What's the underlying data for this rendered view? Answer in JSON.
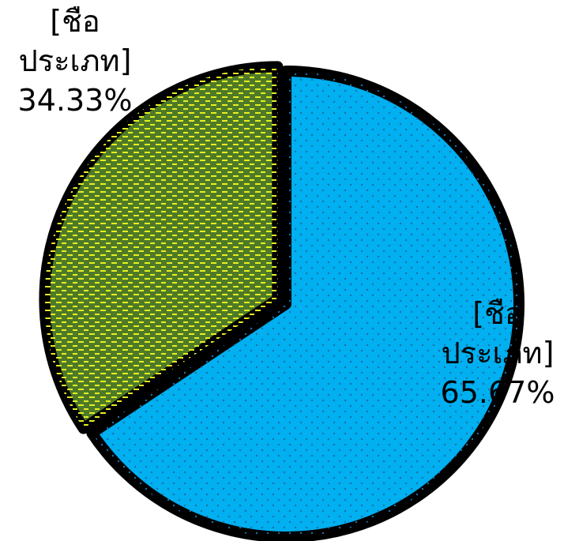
{
  "chart_data": {
    "type": "pie",
    "categories": [
      "[ชือ ประเภท]",
      "[ชือ ประเภท]"
    ],
    "values": [
      65.67,
      34.33
    ],
    "value_labels": [
      "65.67%",
      "34.33%"
    ],
    "colors": [
      "#00b0f0",
      "#4e7a27"
    ]
  }
}
